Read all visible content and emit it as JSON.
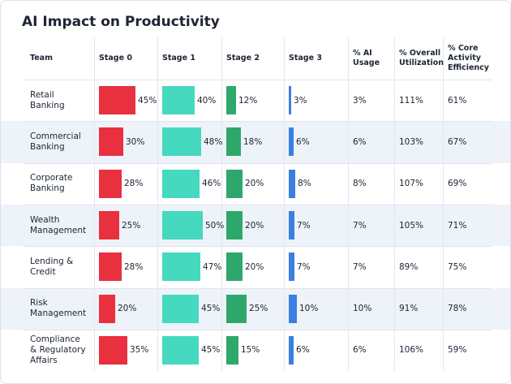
{
  "title": "AI Impact on Productivity",
  "table": {
    "columns": [
      "Team",
      "Stage 0",
      "Stage 1",
      "Stage 2",
      "Stage 3",
      "% AI Usage",
      "% Overall Utilization",
      "% Core Activity Efficiency"
    ],
    "stage_colors": [
      "#e8303f",
      "#45d9bf",
      "#2ea86a",
      "#3b7fe0"
    ],
    "rows": [
      {
        "team": "Retail Banking",
        "stages": [
          {
            "value": 45,
            "label": "45%"
          },
          {
            "value": 40,
            "label": "40%"
          },
          {
            "value": 12,
            "label": "12%"
          },
          {
            "value": 3,
            "label": "3%"
          }
        ],
        "ai_usage": "3%",
        "overall_utilization": "111%",
        "core_activity_efficiency": "61%"
      },
      {
        "team": "Commercial Banking",
        "stages": [
          {
            "value": 30,
            "label": "30%"
          },
          {
            "value": 48,
            "label": "48%"
          },
          {
            "value": 18,
            "label": "18%"
          },
          {
            "value": 6,
            "label": "6%"
          }
        ],
        "ai_usage": "6%",
        "overall_utilization": "103%",
        "core_activity_efficiency": "67%"
      },
      {
        "team": "Corporate Banking",
        "stages": [
          {
            "value": 28,
            "label": "28%"
          },
          {
            "value": 46,
            "label": "46%"
          },
          {
            "value": 20,
            "label": "20%"
          },
          {
            "value": 8,
            "label": "8%"
          }
        ],
        "ai_usage": "8%",
        "overall_utilization": "107%",
        "core_activity_efficiency": "69%"
      },
      {
        "team": "Wealth Management",
        "stages": [
          {
            "value": 25,
            "label": "25%"
          },
          {
            "value": 50,
            "label": "50%"
          },
          {
            "value": 20,
            "label": "20%"
          },
          {
            "value": 7,
            "label": "7%"
          }
        ],
        "ai_usage": "7%",
        "overall_utilization": "105%",
        "core_activity_efficiency": "71%"
      },
      {
        "team": "Lending & Credit",
        "stages": [
          {
            "value": 28,
            "label": "28%"
          },
          {
            "value": 47,
            "label": "47%"
          },
          {
            "value": 20,
            "label": "20%"
          },
          {
            "value": 7,
            "label": "7%"
          }
        ],
        "ai_usage": "7%",
        "overall_utilization": "89%",
        "core_activity_efficiency": "75%"
      },
      {
        "team": "Risk Management",
        "stages": [
          {
            "value": 20,
            "label": "20%"
          },
          {
            "value": 45,
            "label": "45%"
          },
          {
            "value": 25,
            "label": "25%"
          },
          {
            "value": 10,
            "label": "10%"
          }
        ],
        "ai_usage": "10%",
        "overall_utilization": "91%",
        "core_activity_efficiency": "78%"
      },
      {
        "team": "Compliance & Regulatory Affairs",
        "stages": [
          {
            "value": 35,
            "label": "35%"
          },
          {
            "value": 45,
            "label": "45%"
          },
          {
            "value": 15,
            "label": "15%"
          },
          {
            "value": 6,
            "label": "6%"
          }
        ],
        "ai_usage": "6%",
        "overall_utilization": "106%",
        "core_activity_efficiency": "59%"
      }
    ]
  }
}
